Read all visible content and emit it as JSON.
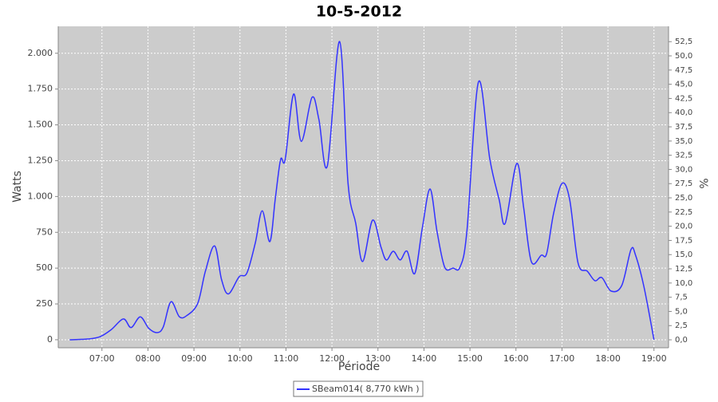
{
  "chart_data": {
    "type": "line",
    "title": "10-5-2012",
    "x_label": "Période",
    "y_label": "Watts",
    "y2_label": "%",
    "x": [
      "06:18",
      "06:41",
      "06:57",
      "07:12",
      "07:28",
      "07:38",
      "07:50",
      "08:01",
      "08:12",
      "08:20",
      "08:30",
      "08:41",
      "08:51",
      "09:05",
      "09:15",
      "09:27",
      "09:36",
      "09:45",
      "09:59",
      "10:09",
      "10:20",
      "10:29",
      "10:39",
      "10:46",
      "10:53",
      "10:59",
      "11:10",
      "11:20",
      "11:34",
      "11:43",
      "11:54",
      "12:10",
      "12:21",
      "12:31",
      "12:40",
      "12:53",
      "13:04",
      "13:11",
      "13:20",
      "13:29",
      "13:38",
      "13:48",
      "13:58",
      "14:08",
      "14:17",
      "14:27",
      "14:38",
      "14:47",
      "14:56",
      "15:11",
      "15:26",
      "15:38",
      "15:46",
      "16:01",
      "16:10",
      "16:20",
      "16:33",
      "16:40",
      "16:49",
      "17:00",
      "17:10",
      "17:21",
      "17:33",
      "17:43",
      "17:52",
      "18:04",
      "18:18",
      "18:30",
      "18:36",
      "18:47",
      "19:00"
    ],
    "series": [
      {
        "name": "SBeam014( 8,770 kWh )",
        "color": "#3333ff",
        "values": [
          0,
          5,
          20,
          70,
          145,
          85,
          160,
          80,
          50,
          90,
          265,
          160,
          170,
          255,
          480,
          655,
          420,
          320,
          440,
          465,
          675,
          900,
          685,
          980,
          1258,
          1258,
          1715,
          1385,
          1692,
          1537,
          1214,
          2082,
          1091,
          813,
          546,
          835,
          646,
          557,
          618,
          557,
          618,
          462,
          785,
          1052,
          757,
          507,
          500,
          507,
          757,
          1798,
          1258,
          980,
          813,
          1230,
          924,
          546,
          590,
          601,
          880,
          1091,
          980,
          535,
          479,
          412,
          434,
          340,
          379,
          629,
          590,
          368,
          0
        ]
      }
    ],
    "xlim": [
      "06:03",
      "19:19"
    ],
    "xticks": [
      "07:00",
      "08:00",
      "09:00",
      "10:00",
      "11:00",
      "12:00",
      "13:00",
      "14:00",
      "15:00",
      "16:00",
      "17:00",
      "18:00",
      "19:00"
    ],
    "ylim": [
      -56,
      2188
    ],
    "yticks": [
      0,
      250,
      500,
      750,
      {
        "value": 1000,
        "label": "1.000"
      },
      {
        "value": 1250,
        "label": "1.250"
      },
      {
        "value": 1500,
        "label": "1.500"
      },
      {
        "value": 1750,
        "label": "1.750"
      },
      {
        "value": 2000,
        "label": "2.000"
      }
    ],
    "y2lim": [
      -1.4,
      55.2
    ],
    "y2ticks": [
      {
        "value": 0,
        "label": "0,0"
      },
      {
        "value": 2.5,
        "label": "2,5"
      },
      {
        "value": 5,
        "label": "5,0"
      },
      {
        "value": 7.5,
        "label": "7,5"
      },
      {
        "value": 10,
        "label": "10,0"
      },
      {
        "value": 12.5,
        "label": "12,5"
      },
      {
        "value": 15,
        "label": "15,0"
      },
      {
        "value": 17.5,
        "label": "17,5"
      },
      {
        "value": 20,
        "label": "20,0"
      },
      {
        "value": 22.5,
        "label": "22,5"
      },
      {
        "value": 25,
        "label": "25,0"
      },
      {
        "value": 27.5,
        "label": "27,5"
      },
      {
        "value": 30,
        "label": "30,0"
      },
      {
        "value": 32.5,
        "label": "32,5"
      },
      {
        "value": 35,
        "label": "35,0"
      },
      {
        "value": 37.5,
        "label": "37,5"
      },
      {
        "value": 40,
        "label": "40,0"
      },
      {
        "value": 42.5,
        "label": "42,5"
      },
      {
        "value": 45,
        "label": "45,0"
      },
      {
        "value": 47.5,
        "label": "47,5"
      },
      {
        "value": 50,
        "label": "50,0"
      },
      {
        "value": 52.5,
        "label": "52,5"
      }
    ],
    "grid": true,
    "legend": "bottom"
  }
}
